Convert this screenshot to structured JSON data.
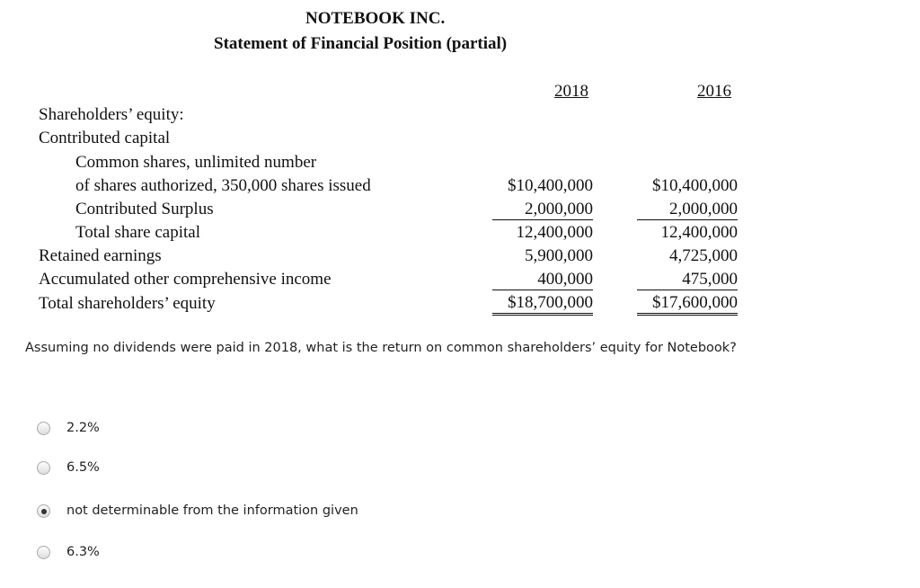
{
  "statement": {
    "company": "NOTEBOOK INC.",
    "title": "Statement of Financial Position (partial)",
    "years": [
      "2018",
      "2016"
    ],
    "rows": [
      {
        "label": "Shareholders’ equity:"
      },
      {
        "label": "Contributed capital"
      },
      {
        "label": "Common shares, unlimited number"
      },
      {
        "label": "of shares authorized, 350,000 shares issued",
        "values": [
          "$10,400,000",
          "$10,400,000"
        ]
      },
      {
        "label": "Contributed Surplus",
        "values": [
          "2,000,000",
          "2,000,000"
        ]
      },
      {
        "label": "Total share capital",
        "values": [
          "12,400,000",
          "12,400,000"
        ]
      },
      {
        "label": "Retained earnings",
        "values": [
          "5,900,000",
          "4,725,000"
        ]
      },
      {
        "label": "Accumulated other comprehensive income",
        "values": [
          "400,000",
          "475,000"
        ]
      },
      {
        "label": "Total shareholders’ equity",
        "values": [
          "$18,700,000",
          "$17,600,000"
        ]
      }
    ]
  },
  "question": "Assuming no dividends were paid in 2018, what is the return on common shareholders’ equity for Notebook?",
  "options": [
    {
      "label": "2.2%",
      "selected": false
    },
    {
      "label": "6.5%",
      "selected": false
    },
    {
      "label": "not determinable from the information given",
      "selected": true
    },
    {
      "label": "6.3%",
      "selected": false
    }
  ]
}
